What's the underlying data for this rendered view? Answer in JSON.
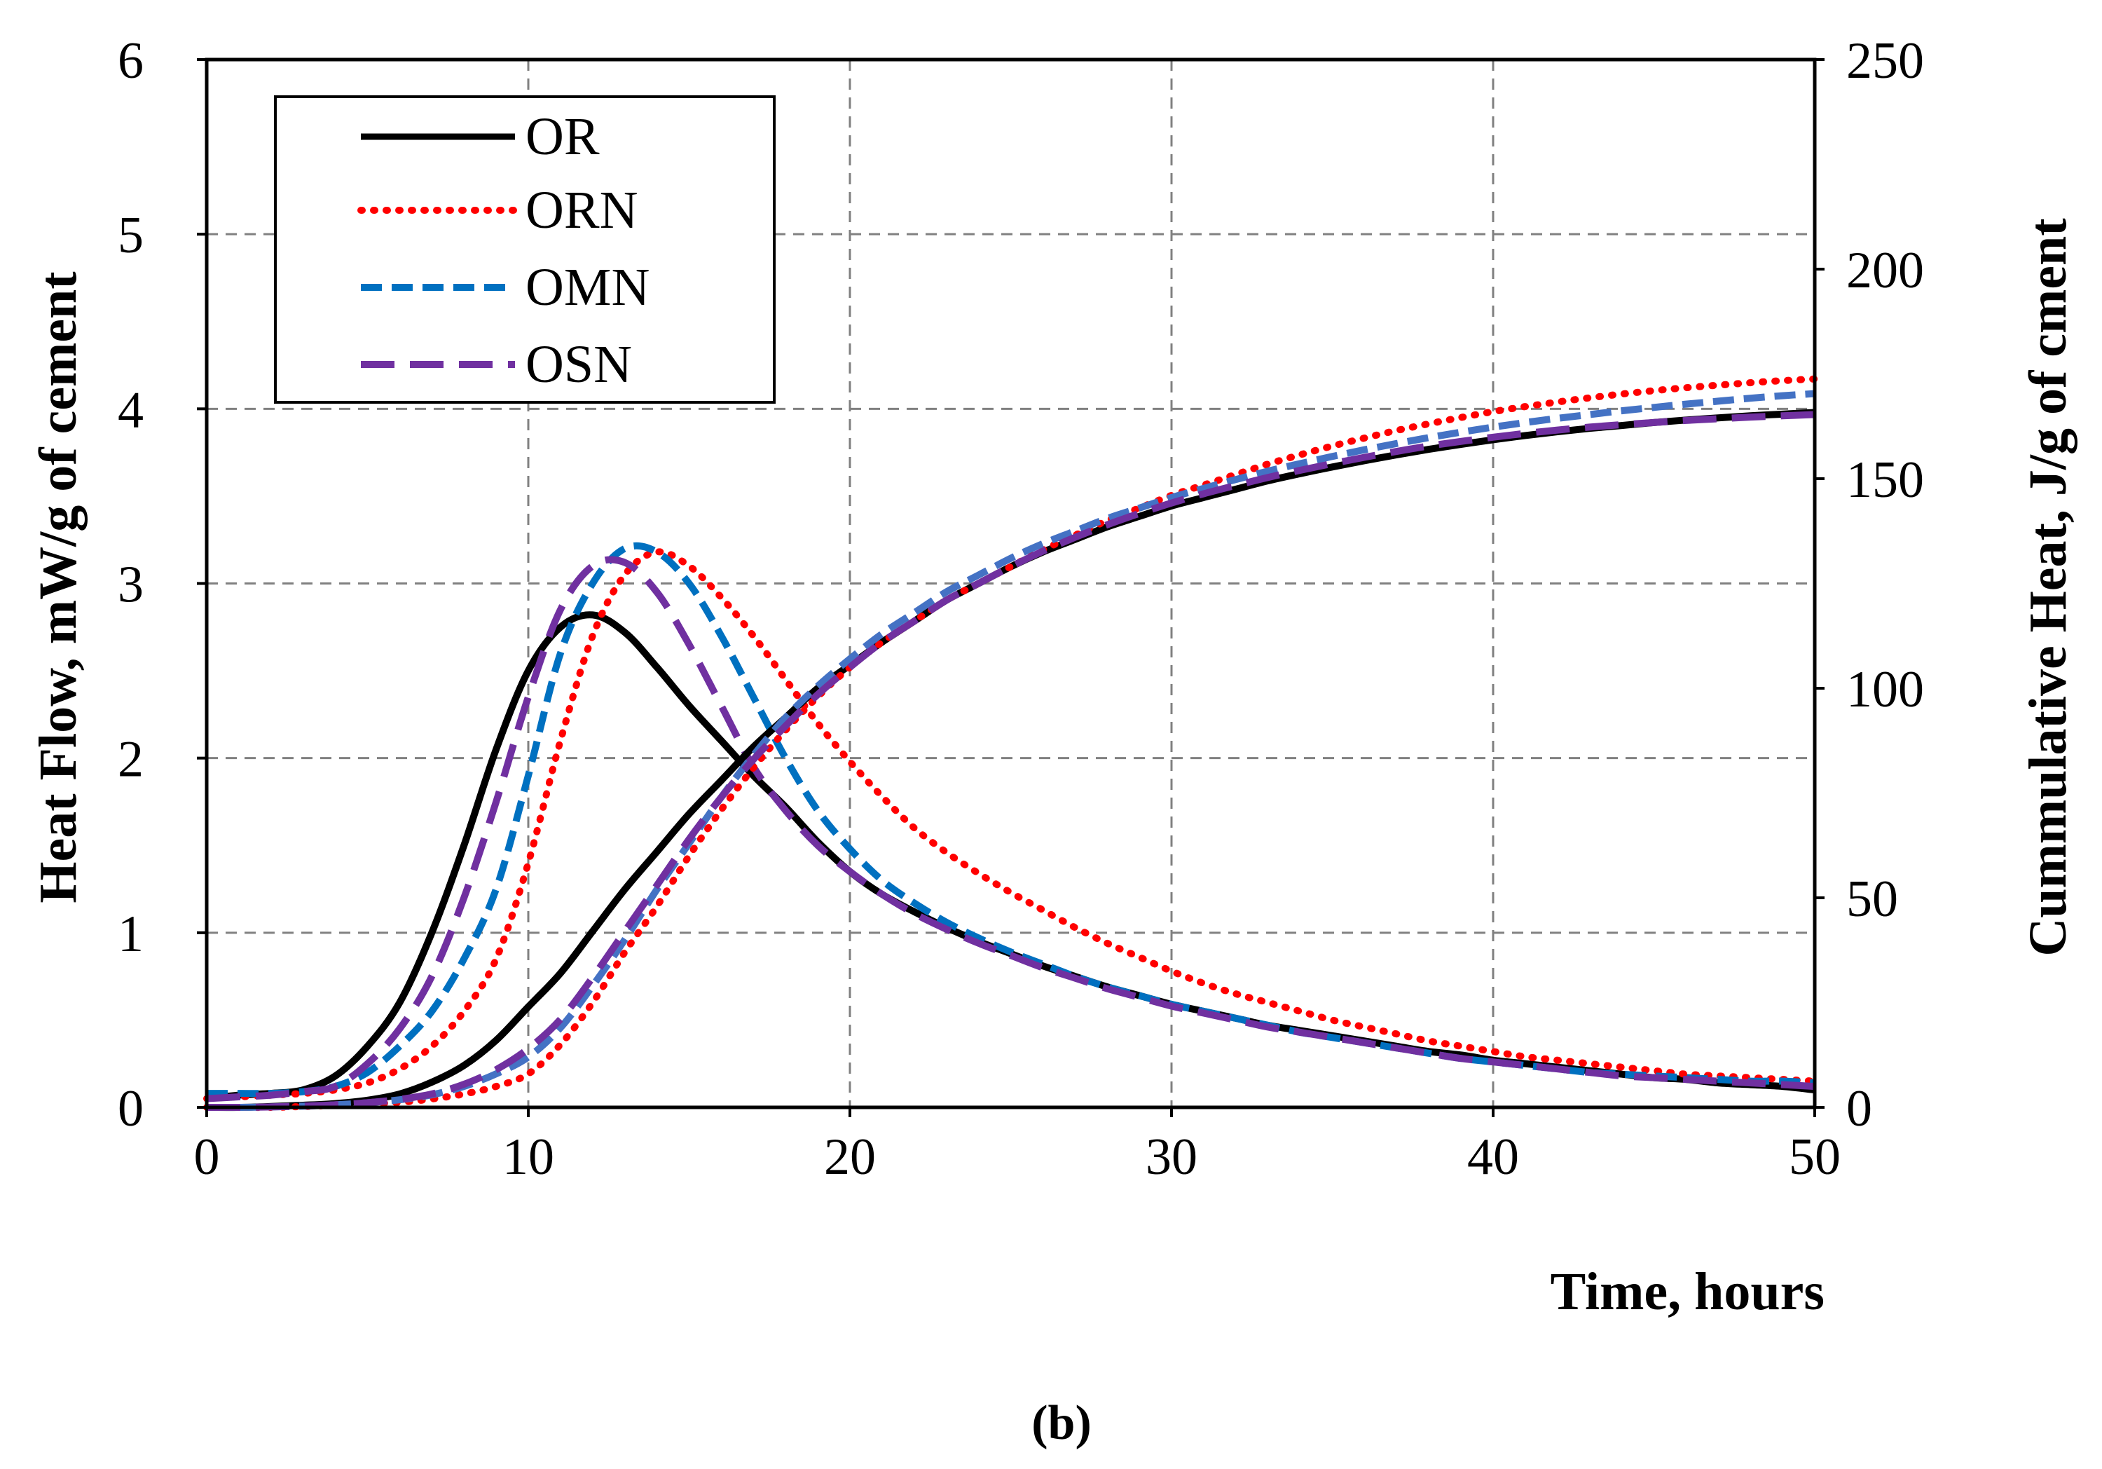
{
  "chart_data": {
    "type": "line",
    "panel_label": "(b)",
    "xlabel": "Time, hours",
    "ylabel_left": "Heat Flow, mW/g of cement",
    "ylabel_right": "Cummulative Heat, J/g of cment",
    "xlim": [
      0,
      50
    ],
    "ylim_left": [
      0,
      6
    ],
    "ylim_right": [
      0,
      250
    ],
    "x_ticks": [
      "0",
      "10",
      "20",
      "30",
      "40",
      "50"
    ],
    "y_left_ticks": [
      "0",
      "1",
      "2",
      "3",
      "4",
      "5",
      "6"
    ],
    "y_right_ticks": [
      "0",
      "50",
      "100",
      "150",
      "200",
      "250"
    ],
    "grid": true,
    "legend_position": "top-left",
    "legend": [
      {
        "name": "OR",
        "color": "#000000",
        "style": "solid"
      },
      {
        "name": "ORN",
        "color": "#ff0000",
        "style": "dotted"
      },
      {
        "name": "OMN",
        "color": "#0070c0",
        "style": "dashed"
      },
      {
        "name": "OSN",
        "color": "#7030a0",
        "style": "long-dashed"
      }
    ],
    "x": [
      0,
      1,
      2,
      3,
      4,
      5,
      6,
      7,
      8,
      9,
      10,
      11,
      12,
      13,
      14,
      15,
      16,
      17,
      18,
      19,
      20,
      21,
      22,
      23,
      24,
      25,
      26,
      27,
      28,
      29,
      30,
      31,
      32,
      33,
      34,
      35,
      36,
      37,
      38,
      39,
      40,
      41,
      42,
      43,
      44,
      45,
      46,
      47,
      48,
      49,
      50
    ],
    "series": [
      {
        "name": "OR",
        "kind": "heat_flow",
        "axis": "left",
        "color": "#000000",
        "style": "solid",
        "values": [
          0.05,
          0.07,
          0.08,
          0.1,
          0.18,
          0.35,
          0.6,
          1.0,
          1.5,
          2.05,
          2.5,
          2.75,
          2.82,
          2.72,
          2.52,
          2.3,
          2.1,
          1.9,
          1.72,
          1.52,
          1.35,
          1.22,
          1.12,
          1.03,
          0.95,
          0.88,
          0.81,
          0.75,
          0.69,
          0.64,
          0.59,
          0.55,
          0.51,
          0.47,
          0.44,
          0.41,
          0.38,
          0.35,
          0.32,
          0.3,
          0.27,
          0.25,
          0.23,
          0.21,
          0.19,
          0.17,
          0.16,
          0.14,
          0.13,
          0.12,
          0.1
        ]
      },
      {
        "name": "ORN",
        "kind": "heat_flow",
        "axis": "left",
        "color": "#ff0000",
        "style": "dotted",
        "values": [
          0.05,
          0.06,
          0.07,
          0.08,
          0.1,
          0.14,
          0.22,
          0.35,
          0.55,
          0.85,
          1.4,
          2.1,
          2.7,
          3.05,
          3.18,
          3.1,
          2.92,
          2.7,
          2.45,
          2.2,
          1.98,
          1.78,
          1.6,
          1.46,
          1.34,
          1.23,
          1.13,
          1.03,
          0.94,
          0.86,
          0.78,
          0.71,
          0.65,
          0.6,
          0.55,
          0.5,
          0.46,
          0.42,
          0.38,
          0.35,
          0.32,
          0.29,
          0.27,
          0.25,
          0.23,
          0.21,
          0.19,
          0.18,
          0.17,
          0.16,
          0.15
        ]
      },
      {
        "name": "OMN",
        "kind": "heat_flow",
        "axis": "left",
        "color": "#0070c0",
        "style": "dashed",
        "values": [
          0.08,
          0.08,
          0.08,
          0.09,
          0.12,
          0.2,
          0.35,
          0.55,
          0.85,
          1.25,
          1.9,
          2.6,
          3.0,
          3.2,
          3.18,
          3.0,
          2.7,
          2.35,
          2.0,
          1.7,
          1.48,
          1.3,
          1.17,
          1.06,
          0.97,
          0.89,
          0.82,
          0.75,
          0.69,
          0.64,
          0.59,
          0.55,
          0.51,
          0.47,
          0.43,
          0.4,
          0.37,
          0.34,
          0.31,
          0.28,
          0.26,
          0.24,
          0.22,
          0.2,
          0.19,
          0.18,
          0.17,
          0.16,
          0.15,
          0.15,
          0.14
        ]
      },
      {
        "name": "OSN",
        "kind": "heat_flow",
        "axis": "left",
        "color": "#7030a0",
        "style": "long-dashed",
        "values": [
          0.05,
          0.06,
          0.07,
          0.09,
          0.12,
          0.25,
          0.45,
          0.75,
          1.2,
          1.75,
          2.35,
          2.85,
          3.1,
          3.12,
          2.95,
          2.65,
          2.3,
          1.95,
          1.7,
          1.5,
          1.35,
          1.22,
          1.11,
          1.02,
          0.94,
          0.87,
          0.8,
          0.74,
          0.68,
          0.63,
          0.58,
          0.54,
          0.5,
          0.46,
          0.43,
          0.4,
          0.37,
          0.34,
          0.31,
          0.28,
          0.26,
          0.24,
          0.22,
          0.2,
          0.18,
          0.17,
          0.16,
          0.15,
          0.14,
          0.13,
          0.12
        ]
      },
      {
        "name": "OR",
        "kind": "cumulative",
        "axis": "right",
        "color": "#000000",
        "style": "solid",
        "values": [
          0,
          0,
          0.2,
          0.5,
          0.9,
          1.7,
          3.2,
          6,
          10,
          16,
          24,
          32,
          42,
          52,
          61,
          70,
          78,
          86,
          93,
          100,
          105.5,
          111,
          116,
          121,
          125,
          129,
          132.5,
          135.5,
          138.5,
          141,
          143.5,
          145.5,
          147.5,
          149.5,
          151.2,
          152.8,
          154.3,
          155.7,
          157,
          158.2,
          159.3,
          160.3,
          161.2,
          162,
          162.7,
          163.4,
          164,
          164.5,
          165,
          165.4,
          165.8
        ]
      },
      {
        "name": "ORN",
        "kind": "cumulative",
        "axis": "right",
        "color": "#ff0000",
        "style": "dotted",
        "values": [
          0,
          0,
          0,
          0.2,
          0.5,
          0.8,
          1.2,
          2,
          3.2,
          5,
          8,
          15,
          25,
          37,
          48,
          60,
          71,
          81,
          90,
          98,
          105,
          111,
          116,
          121,
          125,
          129,
          133,
          136.5,
          140,
          143,
          146,
          148.5,
          151,
          153.5,
          155.7,
          157.8,
          159.7,
          161.5,
          163.1,
          164.6,
          166,
          167.2,
          168.3,
          169.3,
          170.2,
          171,
          171.7,
          172.3,
          172.9,
          173.4,
          173.8
        ]
      },
      {
        "name": "OMN",
        "kind": "cumulative",
        "axis": "right",
        "color": "#4472c4",
        "style": "dashed",
        "values": [
          0,
          0,
          0.1,
          0.3,
          0.6,
          1.1,
          1.8,
          3,
          5,
          8,
          12,
          19,
          29,
          40,
          52,
          63,
          74,
          84,
          93,
          100.5,
          107,
          113,
          118,
          123,
          127,
          131,
          134.5,
          137.5,
          140.5,
          143,
          145.5,
          147.7,
          149.8,
          151.8,
          153.6,
          155.3,
          156.9,
          158.4,
          159.8,
          161.1,
          162.3,
          163.4,
          164.4,
          165.3,
          166.2,
          167,
          167.8,
          168.5,
          169.2,
          169.8,
          170.3
        ]
      },
      {
        "name": "OSN",
        "kind": "cumulative",
        "axis": "right",
        "color": "#7030a0",
        "style": "long-dashed",
        "values": [
          0,
          0,
          0.1,
          0.3,
          0.6,
          1.1,
          1.9,
          3.2,
          5.5,
          9,
          14,
          21,
          31,
          42,
          53,
          64,
          74,
          83,
          91,
          98.5,
          105,
          111,
          116,
          121,
          125,
          129,
          132.7,
          136,
          139,
          141.7,
          144.2,
          146.4,
          148.4,
          150.3,
          152,
          153.6,
          155.1,
          156.5,
          157.8,
          158.9,
          159.9,
          160.8,
          161.6,
          162.3,
          162.9,
          163.4,
          163.9,
          164.3,
          164.7,
          165,
          165.3
        ]
      }
    ]
  }
}
